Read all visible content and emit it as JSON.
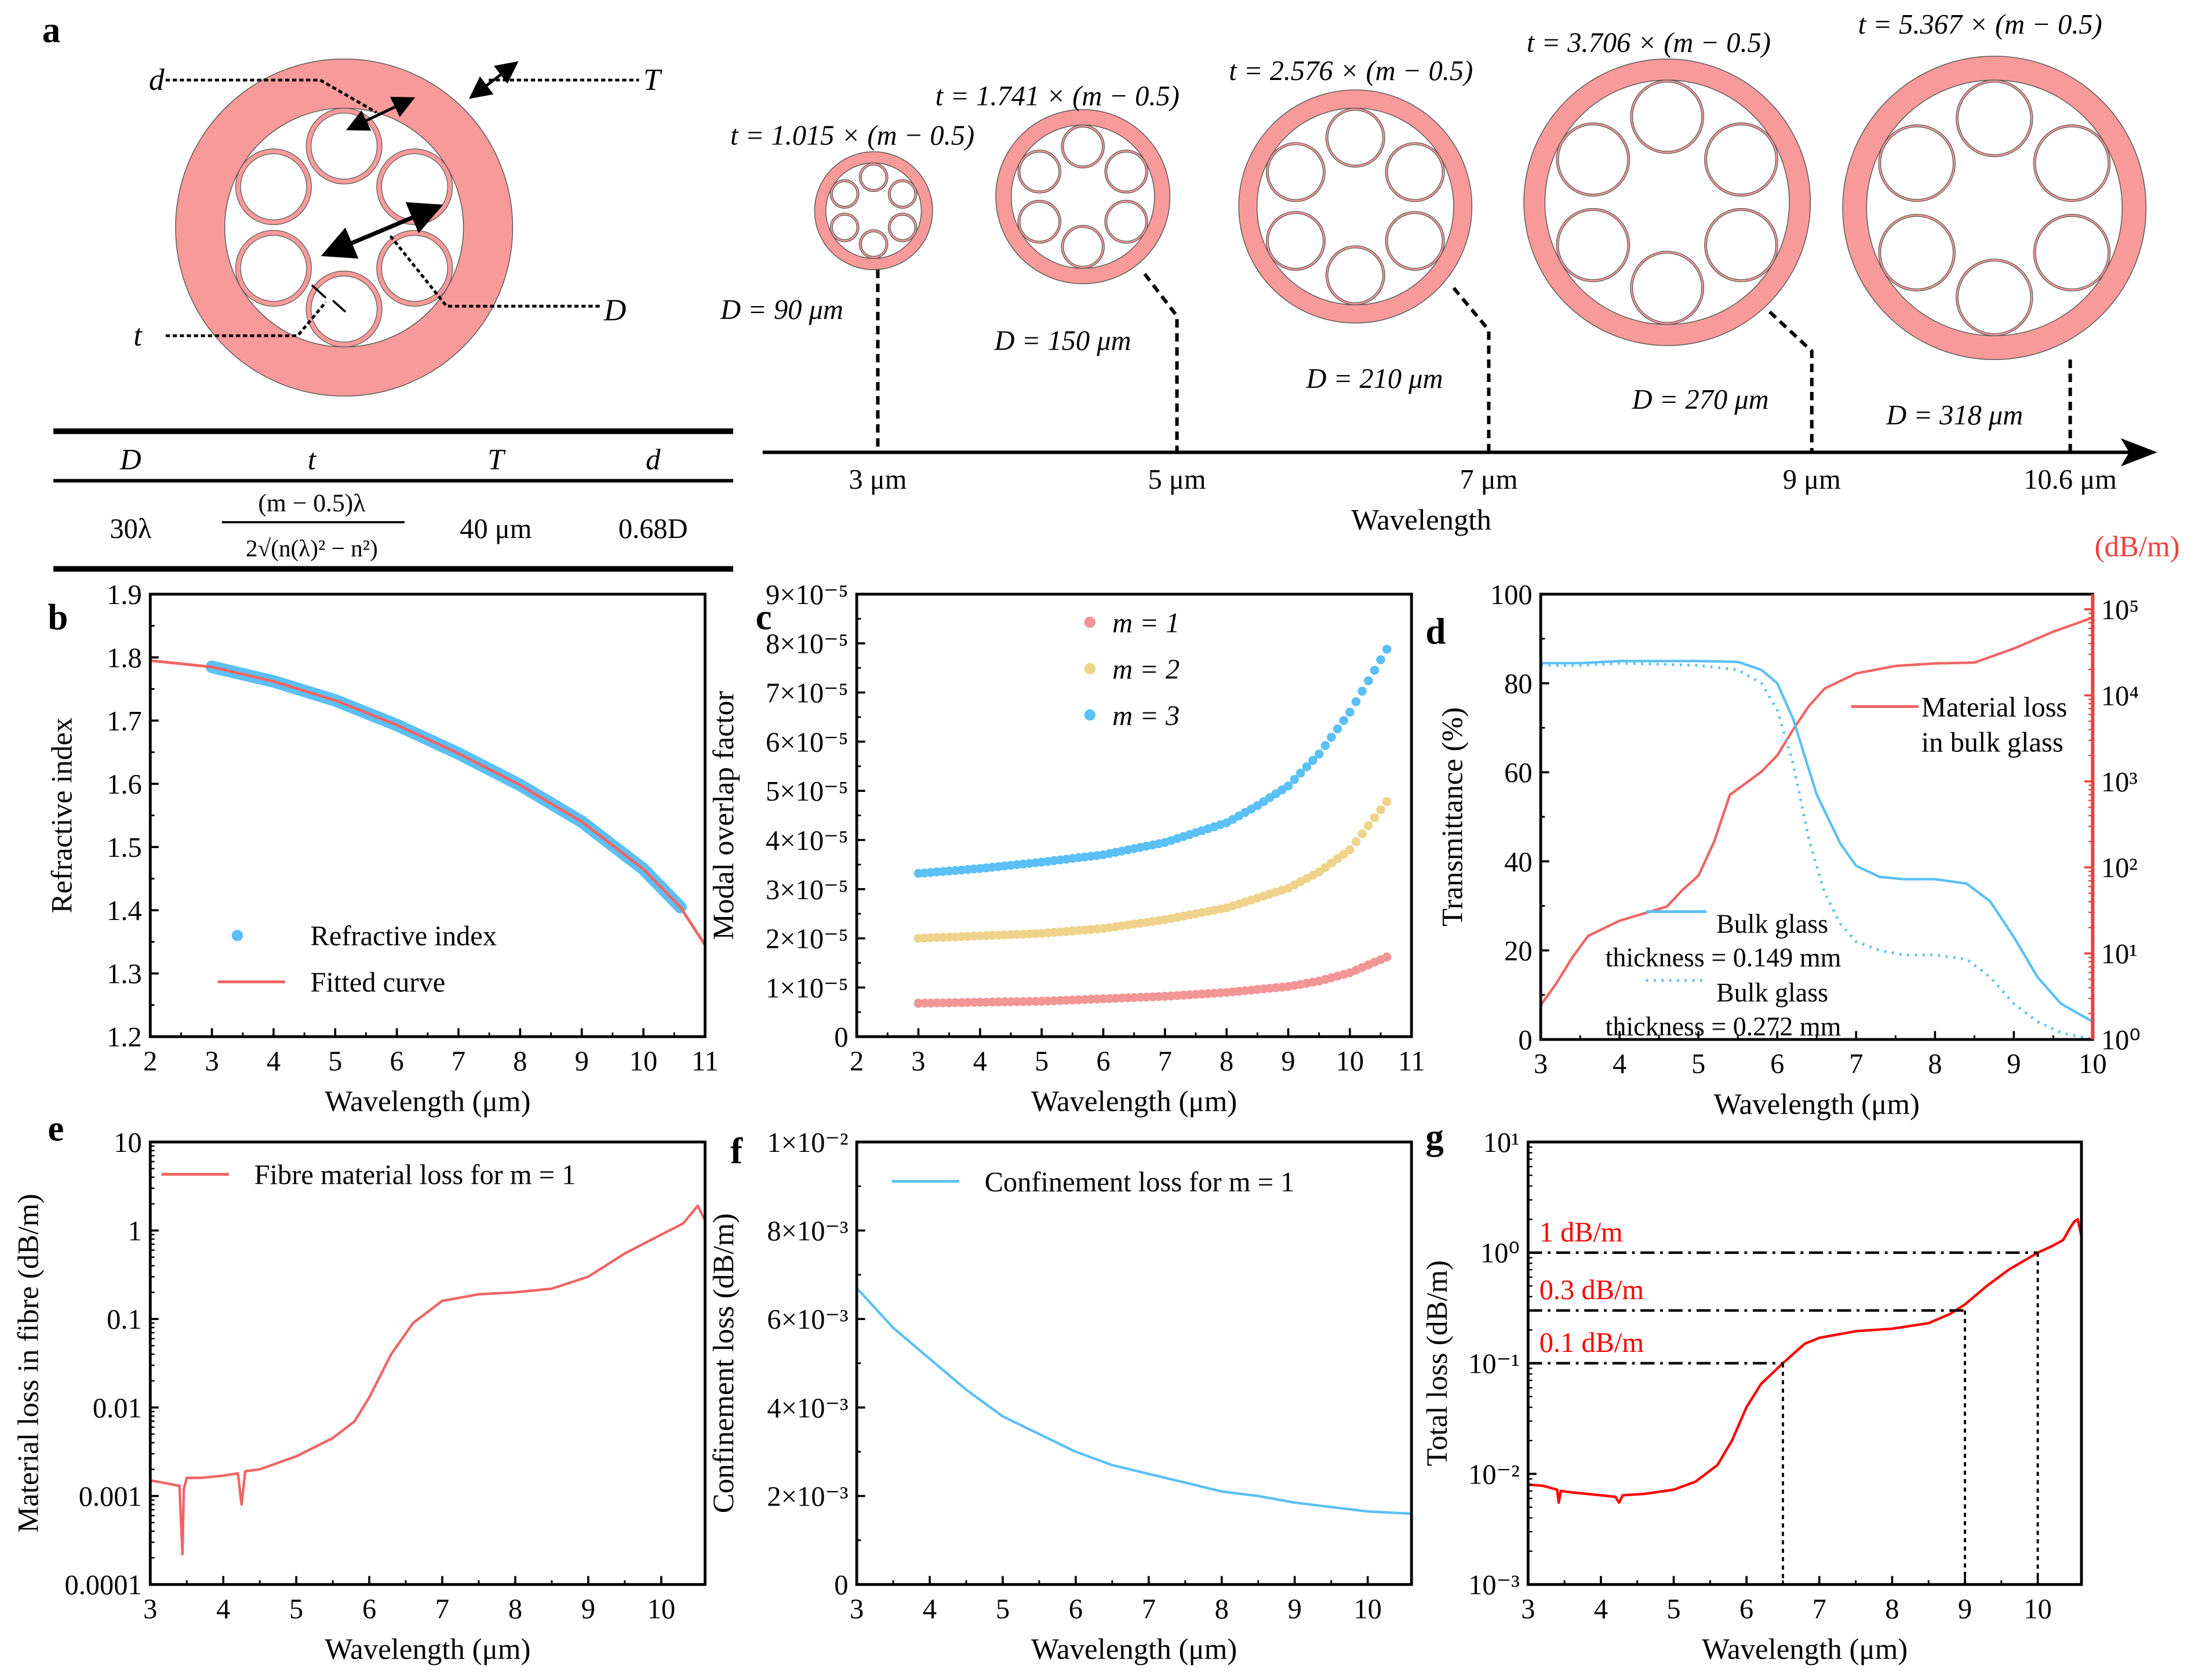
{
  "colors": {
    "fibre_pink": "#f99a9a",
    "red": "#f06464",
    "blue": "#5bc0f5",
    "yellow": "#efd38a",
    "pink_dots": "#f29595",
    "pure_red": "#ff0000",
    "right_axis": "#f04040"
  },
  "panel_labels": {
    "a": "a",
    "b": "b",
    "c": "c",
    "d": "d",
    "e": "e",
    "f": "f",
    "g": "g"
  },
  "schematic": {
    "labels": {
      "d": "d",
      "T": "T",
      "D": "D",
      "t": "t"
    },
    "table": {
      "headers": [
        "D",
        "t",
        "T",
        "d"
      ],
      "row": {
        "D": "30λ",
        "t_numerator": "(m − 0.5)λ",
        "t_denominator": "2√(n(λ)² − n²)",
        "T": "40 μm",
        "d": "0.68D"
      }
    },
    "fibres": [
      {
        "t_label": "t = 1.015 × (m − 0.5)",
        "D_label": "D = 90 μm",
        "wavelength": "3 μm"
      },
      {
        "t_label": "t = 1.741 × (m − 0.5)",
        "D_label": "D = 150 μm",
        "wavelength": "5 μm"
      },
      {
        "t_label": "t = 2.576 × (m − 0.5)",
        "D_label": "D = 210 μm",
        "wavelength": "7 μm"
      },
      {
        "t_label": "t = 3.706 × (m − 0.5)",
        "D_label": "D = 270 μm",
        "wavelength": "9 μm"
      },
      {
        "t_label": "t = 5.367 × (m − 0.5)",
        "D_label": "D = 318 μm",
        "wavelength": "10.6 μm"
      }
    ],
    "axis_label": "Wavelength"
  },
  "chart_data": [
    {
      "panel": "b",
      "type": "scatter+line",
      "xlabel": "Wavelength (μm)",
      "ylabel": "Refractive index",
      "xlim": [
        2,
        11
      ],
      "ylim": [
        1.2,
        1.9
      ],
      "yscale": "linear",
      "xticks": [
        2,
        3,
        4,
        5,
        6,
        7,
        8,
        9,
        10,
        11
      ],
      "xticklabels": [
        "2",
        "3",
        "4",
        "5",
        "6",
        "7",
        "8",
        "9",
        "10",
        "11"
      ],
      "yticks": [
        1.2,
        1.3,
        1.4,
        1.5,
        1.6,
        1.7,
        1.8,
        1.9
      ],
      "yticklabels": [
        "1.2",
        "1.3",
        "1.4",
        "1.5",
        "1.6",
        "1.7",
        "1.8",
        "1.9"
      ],
      "legend_position": "bottom-center",
      "series": [
        {
          "name": "Refractive index",
          "kind": "dots",
          "color": "#5bc0f5",
          "x": [
            3,
            4,
            5,
            6,
            7,
            8,
            9,
            10,
            10.6
          ],
          "y": [
            1.785,
            1.762,
            1.732,
            1.693,
            1.648,
            1.598,
            1.54,
            1.465,
            1.405
          ]
        },
        {
          "name": "Fitted curve",
          "kind": "line",
          "color": "#f06464",
          "x": [
            2,
            3,
            4,
            5,
            6,
            7,
            8,
            9,
            10,
            10.6,
            11
          ],
          "y": [
            1.795,
            1.785,
            1.762,
            1.732,
            1.693,
            1.648,
            1.598,
            1.54,
            1.465,
            1.405,
            1.345
          ]
        }
      ]
    },
    {
      "panel": "c",
      "type": "scatter",
      "xlabel": "Wavelength (μm)",
      "ylabel": "Modal overlap factor",
      "xlim": [
        2,
        11
      ],
      "ylim": [
        0,
        9e-05
      ],
      "yscale": "linear",
      "xticks": [
        2,
        3,
        4,
        5,
        6,
        7,
        8,
        9,
        10,
        11
      ],
      "xticklabels": [
        "2",
        "3",
        "4",
        "5",
        "6",
        "7",
        "8",
        "9",
        "10",
        "11"
      ],
      "yticks": [
        0,
        1e-05,
        2e-05,
        3e-05,
        4e-05,
        5e-05,
        6e-05,
        7e-05,
        8e-05,
        9e-05
      ],
      "yticklabels": [
        "0",
        "1×10⁻⁵",
        "2×10⁻⁵",
        "3×10⁻⁵",
        "4×10⁻⁵",
        "5×10⁻⁵",
        "6×10⁻⁵",
        "7×10⁻⁵",
        "8×10⁻⁵",
        "9×10⁻⁵"
      ],
      "legend_position": "top-center",
      "series": [
        {
          "name": "m = 1",
          "kind": "dots",
          "color": "#f29595",
          "x": [
            3,
            5,
            7,
            8,
            9,
            9.5,
            10,
            10.6
          ],
          "y": [
            6.8e-06,
            7.2e-06,
            8.2e-06,
            9e-06,
            1.02e-05,
            1.13e-05,
            1.3e-05,
            1.62e-05
          ]
        },
        {
          "name": "m = 2",
          "kind": "dots",
          "color": "#efd38a",
          "x": [
            3,
            5,
            6,
            7,
            8,
            9,
            9.5,
            10,
            10.6
          ],
          "y": [
            2e-05,
            2.1e-05,
            2.2e-05,
            2.38e-05,
            2.62e-05,
            3.02e-05,
            3.35e-05,
            3.8e-05,
            4.78e-05
          ]
        },
        {
          "name": "m = 3",
          "kind": "dots",
          "color": "#5bc0f5",
          "x": [
            3,
            4,
            5,
            6,
            7,
            8,
            8.5,
            9,
            9.5,
            10,
            10.6
          ],
          "y": [
            3.32e-05,
            3.42e-05,
            3.55e-05,
            3.7e-05,
            3.95e-05,
            4.35e-05,
            4.7e-05,
            5.1e-05,
            5.75e-05,
            6.6e-05,
            7.88e-05
          ]
        }
      ]
    },
    {
      "panel": "d",
      "type": "line",
      "xlabel": "Wavelength (μm)",
      "ylabel": "Transmittance (%)",
      "ylabel_right": "(dB/m)",
      "xlim": [
        3,
        10
      ],
      "ylim": [
        0,
        100
      ],
      "yscale": "linear",
      "ylim_right": [
        1,
        150000
      ],
      "yscale_right": "log",
      "xticks": [
        3,
        4,
        5,
        6,
        7,
        8,
        9,
        10
      ],
      "xticklabels": [
        "3",
        "4",
        "5",
        "6",
        "7",
        "8",
        "9",
        "10"
      ],
      "yticks": [
        0,
        20,
        40,
        60,
        80,
        100
      ],
      "yticklabels": [
        "0",
        "20",
        "40",
        "60",
        "80",
        "100"
      ],
      "yticks_right": [
        1,
        10,
        100,
        1000,
        10000,
        100000
      ],
      "yticklabels_right": [
        "10⁰",
        "10¹",
        "10²",
        "10³",
        "10⁴",
        "10⁵"
      ],
      "series": [
        {
          "name": "Material loss\nin bulk glass",
          "axis": "right",
          "style": "solid",
          "color": "#f06464",
          "x": [
            3,
            3.2,
            3.4,
            3.6,
            4,
            4.6,
            4.8,
            5,
            5.2,
            5.4,
            5.6,
            5.8,
            6,
            6.2,
            6.4,
            6.6,
            7,
            7.5,
            8,
            8.5,
            9,
            9.5,
            10
          ],
          "y": [
            2.5,
            4.5,
            9,
            16,
            24,
            35,
            55,
            80,
            200,
            700,
            950,
            1300,
            2000,
            4000,
            7500,
            12000,
            18000,
            22000,
            23500,
            24000,
            35000,
            55000,
            80000
          ]
        },
        {
          "name": "Bulk glass\nthickness = 0.149 mm",
          "axis": "left",
          "style": "solid",
          "color": "#5bc0f5",
          "x": [
            3,
            3.5,
            4,
            5,
            5.5,
            5.8,
            6,
            6.2,
            6.5,
            6.8,
            7,
            7.3,
            7.6,
            8,
            8.4,
            8.7,
            9,
            9.3,
            9.6,
            10
          ],
          "y": [
            84.5,
            84.5,
            85,
            85,
            84.8,
            83,
            80,
            72,
            55,
            44,
            39,
            36.5,
            36,
            36,
            35,
            31,
            23,
            14,
            8,
            4
          ]
        },
        {
          "name": "Bulk glass\nthickness = 0.272 mm",
          "axis": "left",
          "style": "dotted",
          "color": "#5bc0f5",
          "x": [
            3,
            3.5,
            4,
            5,
            5.5,
            5.8,
            6,
            6.2,
            6.4,
            6.6,
            6.8,
            7,
            7.3,
            7.6,
            8,
            8.4,
            8.7,
            9,
            9.3,
            9.6,
            10
          ],
          "y": [
            84,
            84,
            84.5,
            84,
            83,
            80,
            74,
            62,
            45,
            33,
            26,
            22,
            20,
            19,
            19,
            18,
            14,
            8,
            4,
            1.5,
            0
          ]
        }
      ]
    },
    {
      "panel": "e",
      "type": "line",
      "xlabel": "Wavelength (μm)",
      "ylabel": "Material loss in fibre (dB/m)",
      "xlim": [
        3,
        10.6
      ],
      "ylim": [
        0.0001,
        10
      ],
      "yscale": "log",
      "xticks": [
        3,
        4,
        5,
        6,
        7,
        8,
        9,
        10
      ],
      "xticklabels": [
        "3",
        "4",
        "5",
        "6",
        "7",
        "8",
        "9",
        "10"
      ],
      "yticks": [
        0.0001,
        0.001,
        0.01,
        0.1,
        1,
        10
      ],
      "yticklabels": [
        "0.0001",
        "0.001",
        "0.01",
        "0.1",
        "1",
        "10"
      ],
      "legend_position": "top-left",
      "series": [
        {
          "name": "Fibre material loss for m = 1",
          "color": "#f06464",
          "x": [
            3,
            3.2,
            3.4,
            3.44,
            3.46,
            3.5,
            3.7,
            4,
            4.2,
            4.25,
            4.3,
            4.5,
            5,
            5.5,
            5.8,
            6,
            6.3,
            6.6,
            7,
            7.5,
            8,
            8.5,
            9,
            9.5,
            10,
            10.3,
            10.5,
            10.6
          ],
          "y": [
            0.0015,
            0.0014,
            0.0013,
            0.00022,
            0.0012,
            0.0016,
            0.0016,
            0.0017,
            0.0018,
            0.0008,
            0.0019,
            0.002,
            0.0028,
            0.0045,
            0.007,
            0.013,
            0.04,
            0.09,
            0.16,
            0.19,
            0.2,
            0.22,
            0.3,
            0.55,
            0.9,
            1.2,
            1.9,
            1.3
          ]
        }
      ]
    },
    {
      "panel": "f",
      "type": "line",
      "xlabel": "Wavelength (μm)",
      "ylabel": "Confinement loss (dB/m)",
      "xlim": [
        3,
        10.6
      ],
      "ylim": [
        0,
        0.01
      ],
      "yscale": "linear",
      "xticks": [
        3,
        4,
        5,
        6,
        7,
        8,
        9,
        10
      ],
      "xticklabels": [
        "3",
        "4",
        "5",
        "6",
        "7",
        "8",
        "9",
        "10"
      ],
      "yticks": [
        0,
        0.002,
        0.004,
        0.006,
        0.008,
        0.01
      ],
      "yticklabels": [
        "0",
        "2×10⁻³",
        "4×10⁻³",
        "6×10⁻³",
        "8×10⁻³",
        "1×10⁻²"
      ],
      "legend_position": "top-left",
      "series": [
        {
          "name": "Confinement loss for m = 1",
          "color": "#5bc0f5",
          "x": [
            3,
            3.5,
            4,
            4.5,
            5,
            5.5,
            6,
            6.5,
            7,
            7.5,
            8,
            8.5,
            9,
            9.5,
            10,
            10.6
          ],
          "y": [
            0.0067,
            0.0058,
            0.0051,
            0.0044,
            0.0038,
            0.0034,
            0.003,
            0.0027,
            0.0025,
            0.0023,
            0.0021,
            0.002,
            0.00185,
            0.00175,
            0.00165,
            0.0016
          ]
        }
      ]
    },
    {
      "panel": "g",
      "type": "line",
      "xlabel": "Wavelength (μm)",
      "ylabel": "Total loss (dB/m)",
      "xlim": [
        3,
        10.6
      ],
      "ylim": [
        0.001,
        10
      ],
      "yscale": "log",
      "xticks": [
        3,
        4,
        5,
        6,
        7,
        8,
        9,
        10
      ],
      "xticklabels": [
        "3",
        "4",
        "5",
        "6",
        "7",
        "8",
        "9",
        "10"
      ],
      "yticks": [
        0.001,
        0.01,
        0.1,
        1,
        10
      ],
      "yticklabels": [
        "10⁻³",
        "10⁻²",
        "10⁻¹",
        "10⁰",
        "10¹"
      ],
      "series": [
        {
          "color": "#ff0000",
          "x": [
            3,
            3,
            3.2,
            3.4,
            3.42,
            3.45,
            3.6,
            4,
            4.2,
            4.25,
            4.3,
            4.6,
            5,
            5.3,
            5.6,
            5.8,
            6,
            6.2,
            6.5,
            6.8,
            7,
            7.5,
            8,
            8.5,
            8.8,
            9,
            9.3,
            9.6,
            10,
            10.2,
            10.35,
            10.45,
            10.5,
            10.55,
            10.6,
            10.6
          ],
          "y": [
            0.001,
            0.008,
            0.0078,
            0.0072,
            0.0055,
            0.007,
            0.0068,
            0.0064,
            0.0062,
            0.0055,
            0.0064,
            0.0066,
            0.0072,
            0.0085,
            0.012,
            0.02,
            0.04,
            0.065,
            0.1,
            0.15,
            0.17,
            0.195,
            0.205,
            0.23,
            0.28,
            0.34,
            0.5,
            0.7,
            1.0,
            1.15,
            1.3,
            1.7,
            1.9,
            2.0,
            1.4,
            0.001
          ]
        }
      ],
      "annotations": [
        {
          "label": "1 dB/m",
          "y": 1,
          "x_end": 10
        },
        {
          "label": "0.3 dB/m",
          "y": 0.3,
          "x_end": 9
        },
        {
          "label": "0.1 dB/m",
          "y": 0.1,
          "x_end": 6.5
        }
      ]
    }
  ]
}
